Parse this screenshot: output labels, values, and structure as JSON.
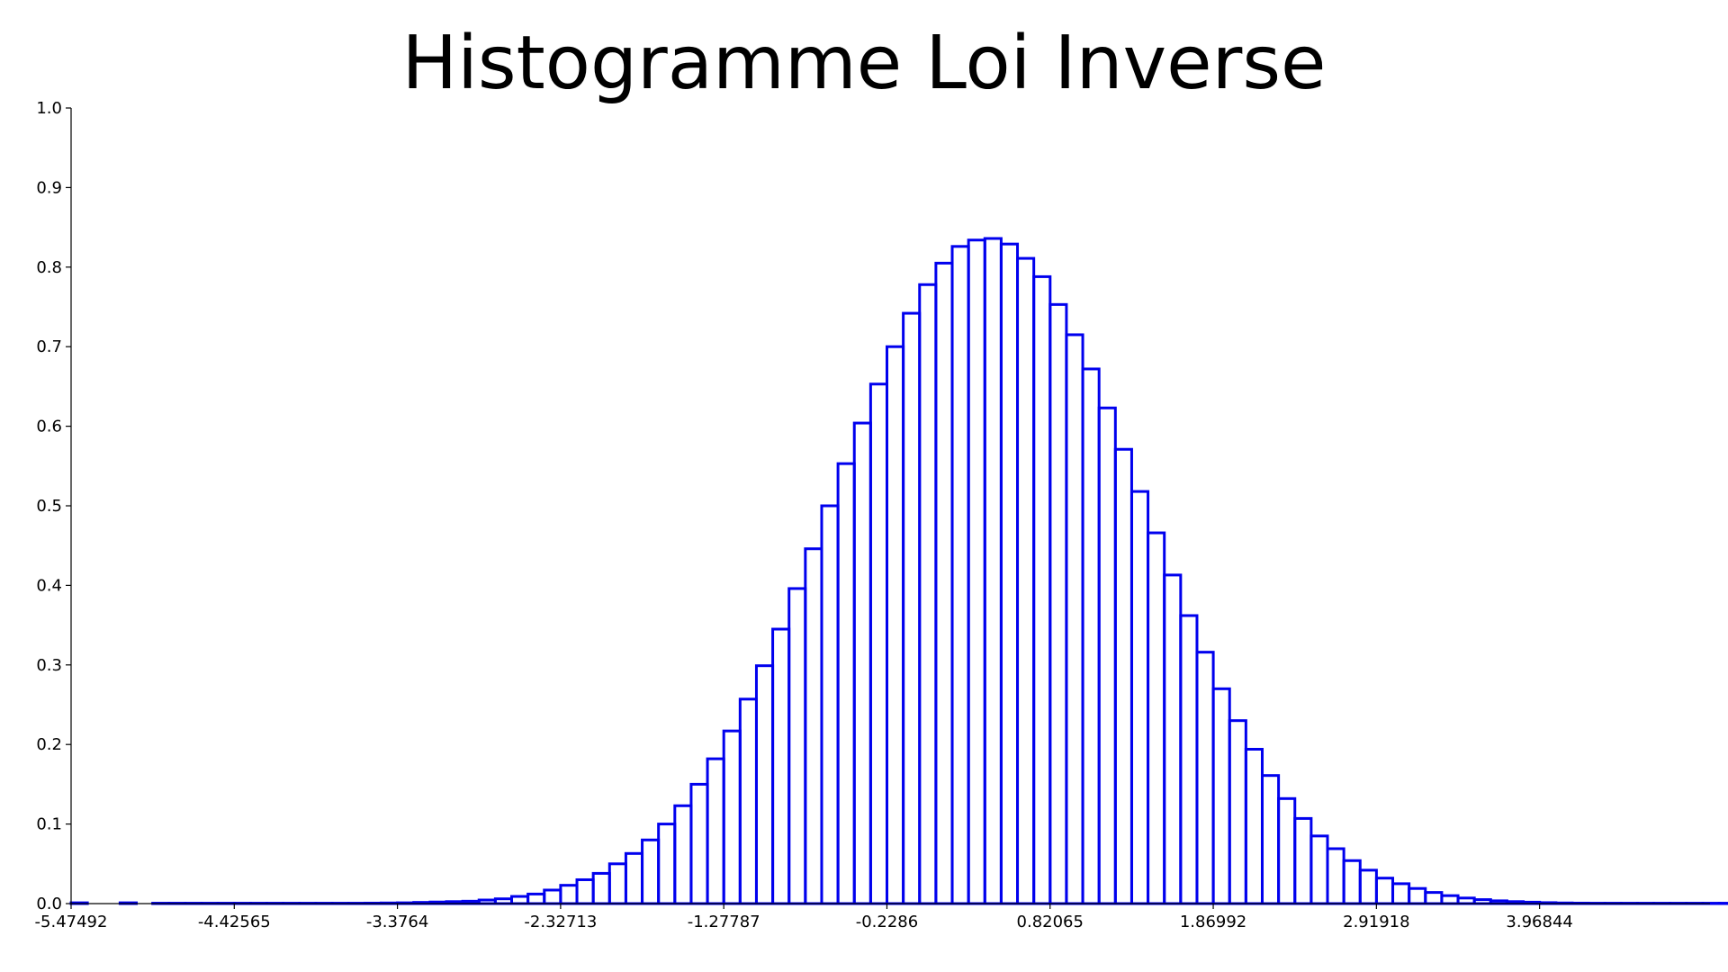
{
  "chart_data": {
    "type": "bar",
    "title": "Histogramme Loi Inverse",
    "xlabel": "",
    "ylabel": "",
    "xlim": [
      -5.47492,
      5.5
    ],
    "ylim": [
      0,
      1.0
    ],
    "bar_color": "#0000ee",
    "grid": false,
    "x_tick_labels": [
      "-5.47492",
      "-4.42565",
      "-3.3764",
      "-2.32713",
      "-1.27787",
      "-0.2286",
      "0.82065",
      "1.86992",
      "2.91918",
      "3.96844"
    ],
    "y_tick_labels": [
      "0.0",
      "0.1",
      "0.2",
      "0.3",
      "0.4",
      "0.5",
      "0.6",
      "0.7",
      "0.8",
      "0.9",
      "1.0"
    ],
    "bin_start": -5.47492,
    "bin_width": 0.10493,
    "values": [
      0.001,
      0,
      0,
      0.001,
      0,
      0.0005,
      0.0005,
      0.0005,
      0.0005,
      0.0005,
      0.0005,
      0.0005,
      0.0005,
      0.0005,
      0.0005,
      0.0005,
      0.0005,
      0.0005,
      0.0006,
      0.0008,
      0.001,
      0.0015,
      0.002,
      0.0025,
      0.003,
      0.0045,
      0.006,
      0.009,
      0.012,
      0.017,
      0.023,
      0.03,
      0.038,
      0.05,
      0.063,
      0.08,
      0.1,
      0.123,
      0.15,
      0.182,
      0.217,
      0.257,
      0.299,
      0.345,
      0.396,
      0.446,
      0.5,
      0.553,
      0.604,
      0.653,
      0.7,
      0.742,
      0.778,
      0.805,
      0.826,
      0.834,
      0.836,
      0.829,
      0.811,
      0.788,
      0.753,
      0.715,
      0.672,
      0.623,
      0.571,
      0.518,
      0.466,
      0.413,
      0.362,
      0.316,
      0.27,
      0.23,
      0.194,
      0.161,
      0.132,
      0.107,
      0.085,
      0.069,
      0.054,
      0.042,
      0.032,
      0.025,
      0.019,
      0.014,
      0.01,
      0.007,
      0.005,
      0.0035,
      0.0025,
      0.0018,
      0.0012,
      0.0008,
      0.0006,
      0.0005,
      0.0005,
      0.0005,
      0.0005,
      0.0005,
      0.0005,
      0.0005,
      0.0005,
      0.0005,
      0.0005,
      0.0005,
      0.0005
    ]
  }
}
